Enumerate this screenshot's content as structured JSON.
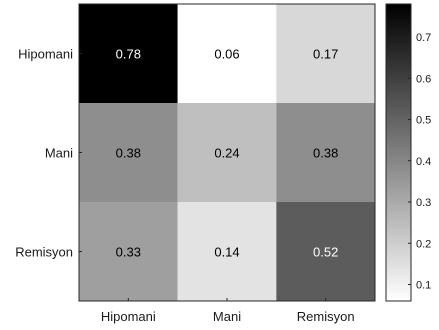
{
  "chart_data": {
    "type": "heatmap",
    "title": "",
    "xlabel": "",
    "ylabel": "",
    "x_categories": [
      "Hipomani",
      "Mani",
      "Remisyon"
    ],
    "y_categories": [
      "Hipomani",
      "Mani",
      "Remisyon"
    ],
    "values": [
      [
        0.78,
        0.06,
        0.17
      ],
      [
        0.38,
        0.24,
        0.38
      ],
      [
        0.33,
        0.14,
        0.52
      ]
    ],
    "value_labels": [
      [
        "0.78",
        "0.06",
        "0.17"
      ],
      [
        "0.38",
        "0.24",
        "0.38"
      ],
      [
        "0.33",
        "0.14",
        "0.52"
      ]
    ],
    "colormap": "gray_reversed",
    "color_low": "#ffffff",
    "color_high": "#000000",
    "colorbar": {
      "range": [
        0.06,
        0.78
      ],
      "ticks": [
        0.1,
        0.2,
        0.3,
        0.4,
        0.5,
        0.6,
        0.7
      ],
      "tick_labels": [
        "0.1",
        "0.2",
        "0.3",
        "0.4",
        "0.5",
        "0.6",
        "0.7"
      ]
    }
  }
}
